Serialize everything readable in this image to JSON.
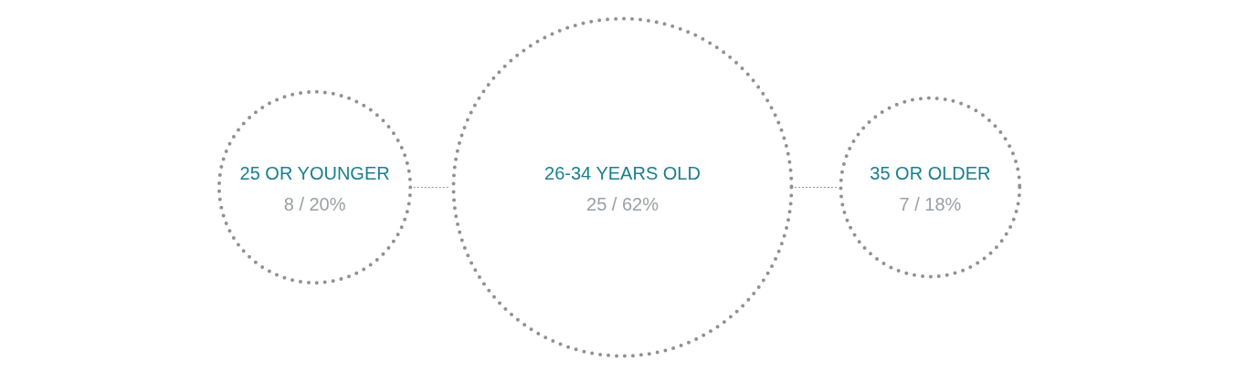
{
  "chart_data": {
    "type": "other",
    "categories": [
      "25 OR YOUNGER",
      "26-34 YEARS OLD",
      "35 OR OLDER"
    ],
    "values": [
      8,
      25,
      7
    ],
    "value_labels": [
      "8 / 20%",
      "25 / 62%",
      "7 / 18%"
    ],
    "color": "#8e9196"
  }
}
